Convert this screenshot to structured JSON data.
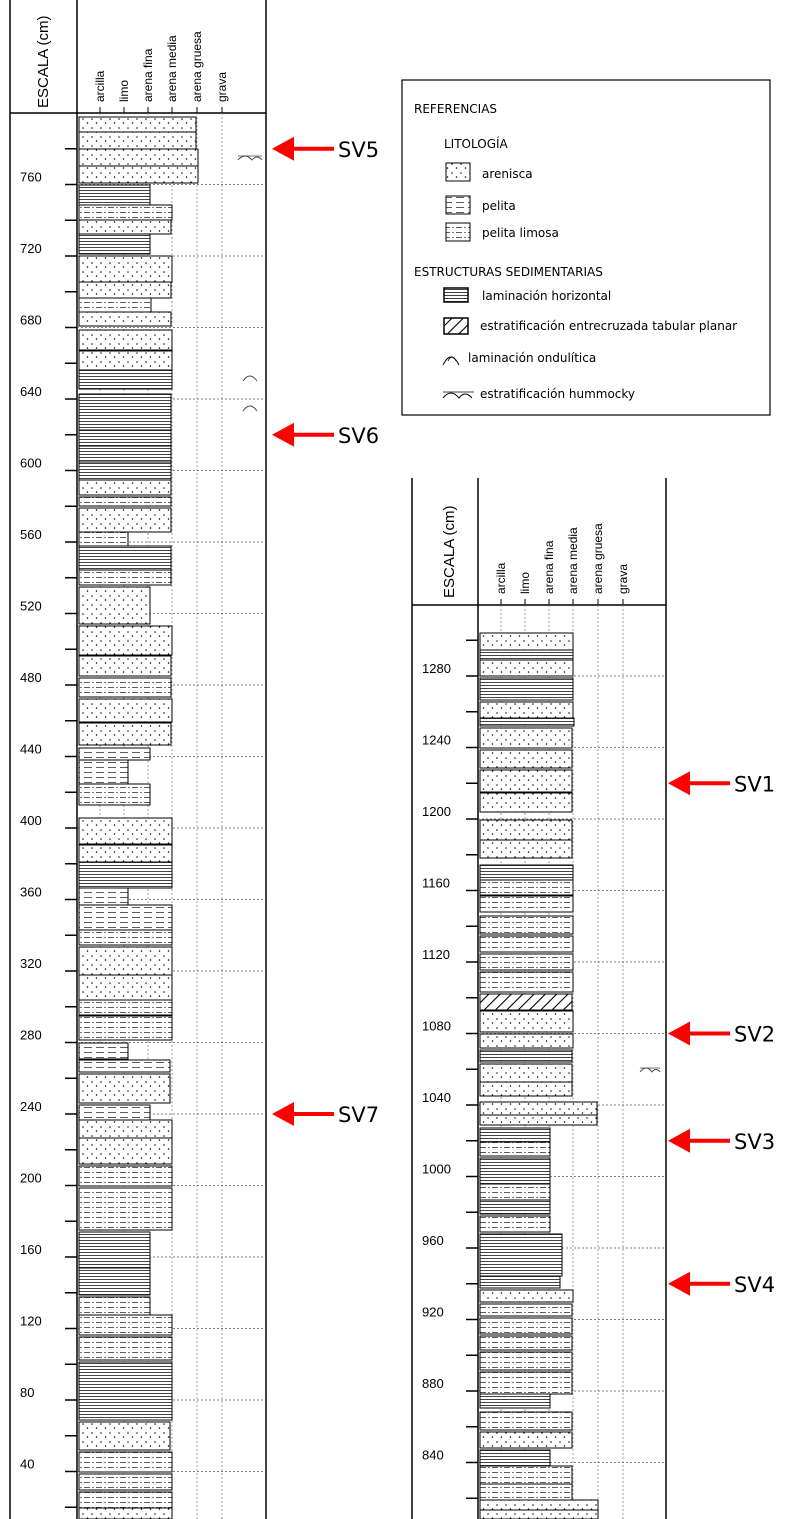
{
  "left_column": {
    "scale_title": "ESCALA (cm)",
    "grain_headers": [
      "arcilla",
      "limo",
      "arena fina",
      "arena media",
      "arena gruesa",
      "grava"
    ],
    "ticks": [
      "760",
      "720",
      "680",
      "640",
      "600",
      "560",
      "520",
      "480",
      "440",
      "400",
      "360",
      "320",
      "280",
      "240",
      "200",
      "160",
      "120",
      "80",
      "40"
    ]
  },
  "right_column": {
    "scale_title": "ESCALA (cm)",
    "grain_headers": [
      "arcilla",
      "limo",
      "arena fina",
      "arena media",
      "arena gruesa",
      "grava"
    ],
    "ticks": [
      "1280",
      "1240",
      "1200",
      "1160",
      "1120",
      "1080",
      "1040",
      "1000",
      "960",
      "920",
      "880",
      "840"
    ]
  },
  "samples": [
    {
      "label": "SV5",
      "cm": 780
    },
    {
      "label": "SV6",
      "cm": 620
    },
    {
      "label": "SV7",
      "cm": 240
    },
    {
      "label": "SV1",
      "cm": 1220
    },
    {
      "label": "SV2",
      "cm": 1080
    },
    {
      "label": "SV3",
      "cm": 1020
    },
    {
      "label": "SV4",
      "cm": 940
    }
  ],
  "legend": {
    "title": "REFERENCIAS",
    "lithology_title": "LITOLOGÍA",
    "lithology": [
      "arenisca",
      "pelita",
      "pelita limosa"
    ],
    "structures_title": "ESTRUCTURAS SEDIMENTARIAS",
    "structures": [
      "laminación horizontal",
      "estratificación entrecruzada tabular planar",
      "laminación ondulítica",
      "estratificación hummocky"
    ]
  },
  "colors": {
    "arrow": "#ff0000",
    "line": "#000000",
    "grid": "#555555"
  }
}
